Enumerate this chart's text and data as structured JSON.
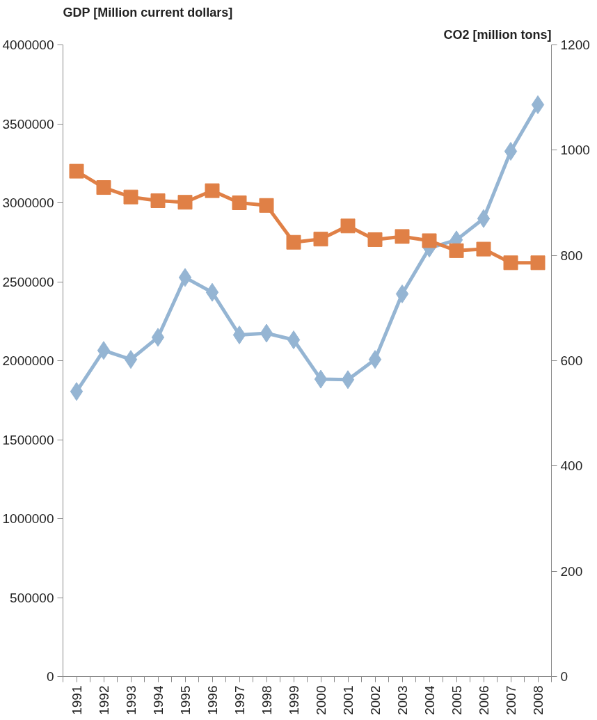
{
  "chart_data": {
    "type": "line",
    "xlabel": null,
    "ylabel": "GDP [Million current dollars]",
    "y2label": "CO2 [million tons]",
    "categories": [
      "1991",
      "1992",
      "1993",
      "1994",
      "1995",
      "1996",
      "1997",
      "1998",
      "1999",
      "2000",
      "2001",
      "2002",
      "2003",
      "2004",
      "2005",
      "2006",
      "2007",
      "2008"
    ],
    "series": [
      {
        "color": "#95b5d3",
        "marker": "diamond",
        "values": [
          1805000,
          2065000,
          2008000,
          2148000,
          2527000,
          2433000,
          2163000,
          2174000,
          2132000,
          1883000,
          1880000,
          2008000,
          2423000,
          2713000,
          2765000,
          2900000,
          3326000,
          3621000
        ]
      },
      {
        "color": "#e08046",
        "marker": "square",
        "axis": "y2",
        "values": [
          960,
          929,
          911,
          904,
          901,
          923,
          900,
          895,
          825,
          831,
          856,
          830,
          836,
          828,
          809,
          812,
          786,
          786
        ]
      }
    ],
    "ylim": [
      0,
      4000000
    ],
    "yticks": [
      0,
      500000,
      1000000,
      1500000,
      2000000,
      2500000,
      3000000,
      3500000,
      4000000
    ],
    "y2lim": [
      0,
      1200
    ],
    "y2ticks": [
      0,
      200,
      400,
      600,
      800,
      1000,
      1200
    ],
    "grid": false,
    "line_style": "solid"
  }
}
